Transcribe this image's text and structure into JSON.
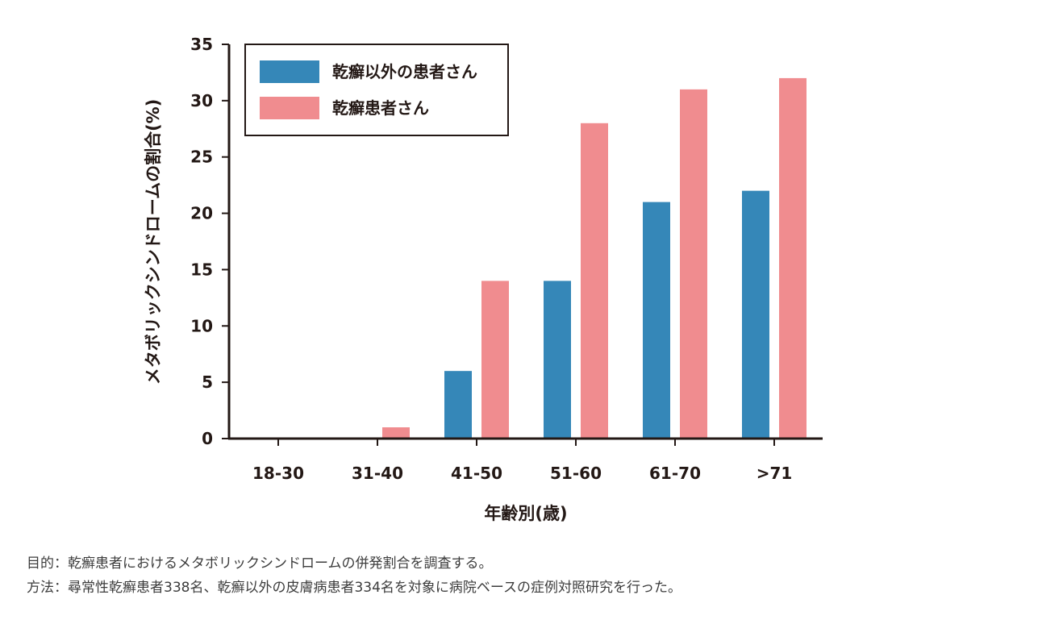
{
  "chart_data": {
    "type": "bar",
    "title": "",
    "xlabel": "年齢別(歳)",
    "ylabel": "メタボリックシンドロームの割合(%)",
    "ylim": [
      0,
      35
    ],
    "yticks": [
      0,
      5,
      10,
      15,
      20,
      25,
      30,
      35
    ],
    "categories": [
      "18-30",
      "31-40",
      "41-50",
      "51-60",
      "61-70",
      ">71"
    ],
    "series": [
      {
        "name": "乾癬以外の患者さん",
        "color": "#3587b8",
        "values": [
          0,
          0,
          6,
          14,
          21,
          22
        ]
      },
      {
        "name": "乾癬患者さん",
        "color": "#f08c8f",
        "values": [
          0,
          1,
          14,
          28,
          31,
          32
        ]
      }
    ],
    "grid": false,
    "legend": "top-left"
  },
  "footnotes": {
    "purpose": "目的：乾癬患者におけるメタボリックシンドロームの併発割合を調査する。",
    "method": "方法：尋常性乾癬患者338名、乾癬以外の皮膚病患者334名を対象に病院ベースの症例対照研究を行った。"
  }
}
